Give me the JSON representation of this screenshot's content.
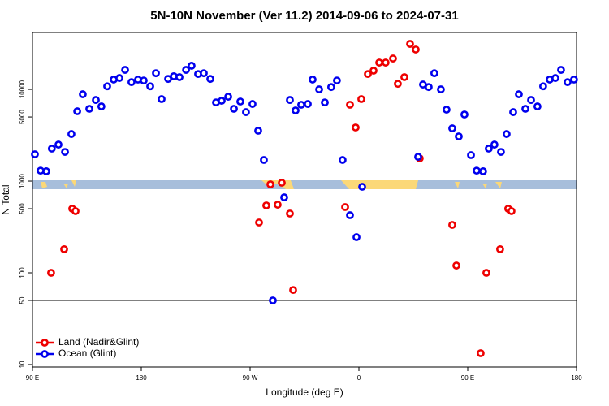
{
  "chart_data": {
    "type": "scatter",
    "title": "5N-10N November (Ver 11.2)   2014-09-06 to 2024-07-31",
    "x_label": "Longitude (deg E)",
    "y_label": "N Total",
    "xlim": [
      90,
      540
    ],
    "ylim": [
      9.4,
      41700
    ],
    "log_y": true,
    "xticks": [
      {
        "value": 90,
        "label": "90 E"
      },
      {
        "value": 180,
        "label": "180"
      },
      {
        "value": 270,
        "label": "90 W"
      },
      {
        "value": 360,
        "label": "0"
      },
      {
        "value": 450,
        "label": "90 E"
      },
      {
        "value": 540,
        "label": "180"
      }
    ],
    "yticks": [
      10,
      50,
      100,
      500,
      1000,
      5000,
      10000
    ],
    "hline": 50,
    "legend": "bottom-left",
    "series": [
      {
        "name": "Land (Nadir&Glint)",
        "color": "#ee0000",
        "x": [
          105.4,
          116.2,
          122.9,
          125.6,
          277.4,
          283.4,
          286.8,
          292.8,
          296.2,
          302.9,
          305.6,
          348.6,
          352.6,
          357.3,
          362,
          367.4,
          372.1,
          376.8,
          382.1,
          388.2,
          392.2,
          397.6,
          402.3,
          407,
          410.3,
          437.2,
          440.6,
          460.7,
          465.4,
          476.8,
          483.5,
          486.2
        ],
        "values": [
          100,
          181,
          500,
          471,
          354,
          543,
          922,
          553,
          960,
          443,
          65,
          521,
          6800,
          3840,
          7840,
          14700,
          16000,
          19600,
          19600,
          21700,
          11500,
          13600,
          31300,
          27200,
          1770,
          333,
          120,
          13.3,
          100,
          181,
          500,
          471
        ]
      },
      {
        "name": "Ocean (Glint)",
        "color": "#0000ee",
        "x": [
          92,
          96.7,
          101.4,
          106,
          111.5,
          116.9,
          122.2,
          127,
          131.6,
          137,
          142.4,
          147,
          151.8,
          157.2,
          161.9,
          166.6,
          171.9,
          177.3,
          182,
          187.4,
          192.1,
          196.8,
          202.2,
          206.9,
          211.6,
          217,
          221.6,
          227,
          231.7,
          237.1,
          241.8,
          246.5,
          251.9,
          256.6,
          261.9,
          266.6,
          272,
          276.7,
          281.4,
          288.8,
          298.2,
          302.9,
          307.6,
          312.3,
          317.7,
          321.7,
          327.1,
          331.8,
          337.1,
          341.8,
          346.5,
          352.6,
          358,
          362.7,
          409,
          413,
          417.7,
          422.4,
          427.8,
          432.5,
          437.2,
          442.6,
          447.3,
          452.7,
          457.4,
          462.7,
          467.4,
          472.1,
          477.5,
          482.2,
          487.6,
          492.3,
          497.7,
          502.4,
          507.7,
          512.4,
          517.8,
          522.5,
          527.2,
          532.6,
          537.9
        ],
        "values": [
          1960,
          1300,
          1280,
          2260,
          2500,
          2080,
          3260,
          5770,
          8850,
          6140,
          7670,
          6520,
          10800,
          12800,
          13300,
          16300,
          12000,
          12800,
          12500,
          10800,
          15000,
          7840,
          13000,
          13900,
          13600,
          16300,
          18100,
          14700,
          15000,
          13000,
          7210,
          7520,
          8320,
          6140,
          7370,
          5650,
          6930,
          3540,
          1700,
          50,
          665,
          7670,
          5890,
          6800,
          6930,
          12800,
          10000,
          7210,
          10600,
          12500,
          1700,
          425,
          245,
          867,
          1840,
          11300,
          10600,
          15000,
          10000,
          6010,
          3760,
          3070,
          5320,
          1920,
          1300,
          1280,
          2260,
          2500,
          2080,
          3260,
          5650,
          8850,
          6140,
          7670,
          6520,
          10800,
          12800,
          13300,
          16300,
          12000,
          12800
        ]
      }
    ]
  }
}
